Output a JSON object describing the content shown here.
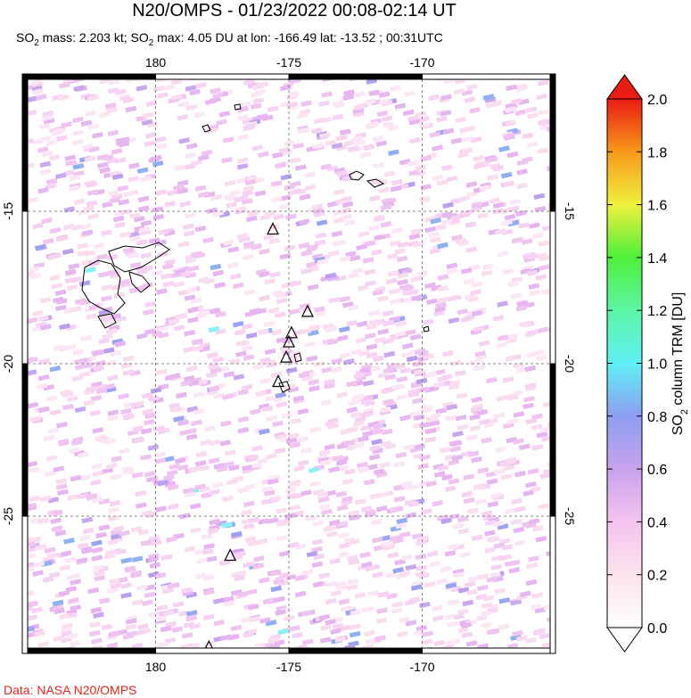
{
  "title": "N20/OMPS - 01/23/2022 00:08-02:14 UT",
  "subtitle": {
    "prefix": "SO",
    "sub": "2",
    "mass_text": " mass: 2.203 kt; SO",
    "sub2": "2",
    "max_text": " max: 4.05 DU at lon: -166.49 lat: -13.52 ; 00:31UTC"
  },
  "credit": "Data: NASA N20/OMPS",
  "map": {
    "lon_ticks": [
      "180",
      "-175",
      "-170"
    ],
    "lat_ticks": [
      "-15",
      "-20",
      "-25"
    ],
    "lon_tick_values": [
      180,
      -175,
      -170
    ],
    "lat_tick_values": [
      -15,
      -20,
      -25
    ],
    "lon_range": [
      175,
      -165
    ],
    "lat_range": [
      -10.5,
      -29.5
    ],
    "grid": true,
    "volcano_markers": [
      {
        "lon": -175.6,
        "lat": -15.6
      },
      {
        "lon": -174.3,
        "lat": -18.3
      },
      {
        "lon": -174.9,
        "lat": -19.0
      },
      {
        "lon": -175.0,
        "lat": -19.3
      },
      {
        "lon": -175.1,
        "lat": -19.8
      },
      {
        "lon": -175.4,
        "lat": -20.6
      },
      {
        "lon": -177.2,
        "lat": -26.3
      },
      {
        "lon": -178.0,
        "lat": -29.3
      }
    ]
  },
  "colorbar": {
    "title_prefix": "SO",
    "title_sub": "2",
    "title_suffix": " column TRM [DU]",
    "tick_labels": [
      "0.0",
      "0.2",
      "0.4",
      "0.6",
      "0.8",
      "1.0",
      "1.2",
      "1.4",
      "1.6",
      "1.8",
      "2.0"
    ],
    "min": 0.0,
    "max": 2.0
  }
}
